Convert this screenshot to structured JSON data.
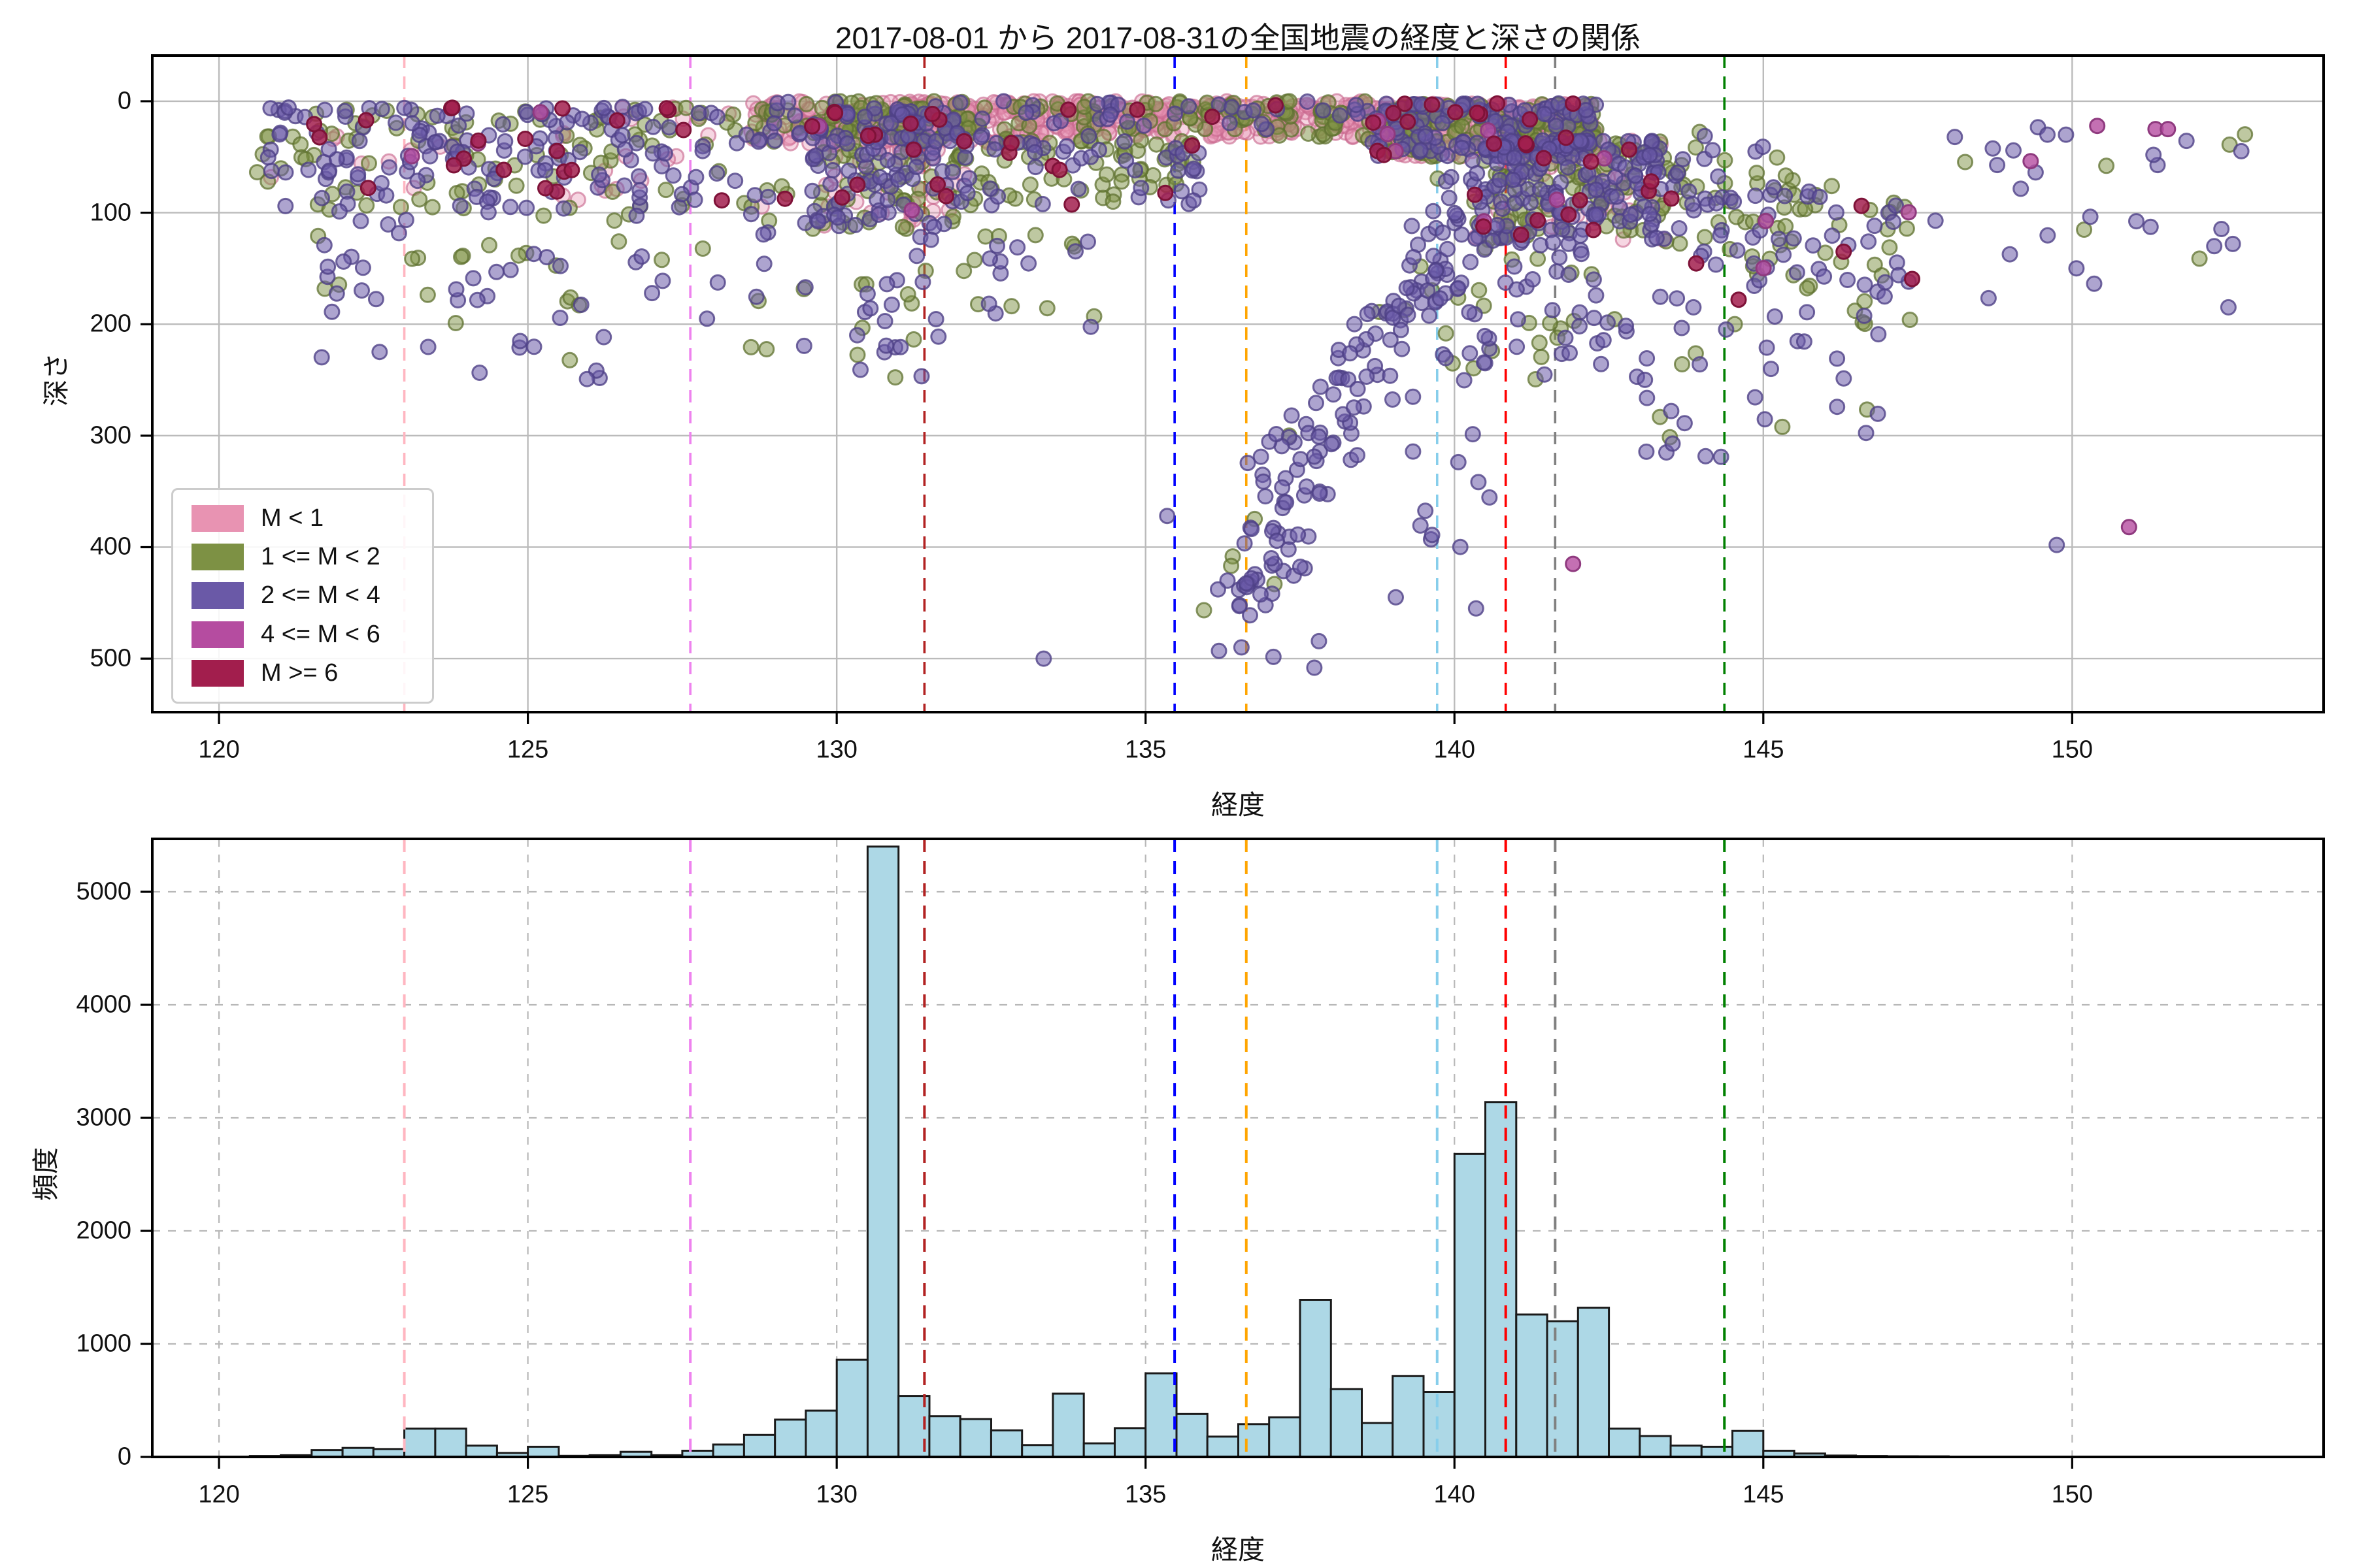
{
  "title": "2017-08-01 から 2017-08-31の全国地震の経度と深さの関係",
  "colors": {
    "background": "#ffffff",
    "grid_top": "#bbbbbb",
    "grid_bottom": "#b8b8b8",
    "spine": "#000000",
    "hist_fill": "#ADD8E6",
    "hist_edge": "#1a1a1a"
  },
  "legend": {
    "items": [
      {
        "key": "p",
        "label": "M < 1",
        "color": "#E893B2"
      },
      {
        "key": "o",
        "label": "1 <= M < 2",
        "color": "#7D9144"
      },
      {
        "key": "u",
        "label": "2 <= M < 4",
        "color": "#6A59A7"
      },
      {
        "key": "m",
        "label": "4 <= M < 6",
        "color": "#B54CA0"
      },
      {
        "key": "c",
        "label": "M >= 6",
        "color": "#A21E4D"
      }
    ]
  },
  "axes": {
    "top": {
      "xlabel": "経度",
      "ylabel": "深さ",
      "xticks": [
        120,
        125,
        130,
        135,
        140,
        145,
        150
      ],
      "yticks": [
        0,
        100,
        200,
        300,
        400,
        500
      ],
      "xlim": [
        118.92,
        154.07
      ],
      "ylim": [
        548,
        -41
      ]
    },
    "bottom": {
      "xlabel": "経度",
      "ylabel": "頻度",
      "xticks": [
        120,
        125,
        130,
        135,
        140,
        145,
        150
      ],
      "yticks": [
        0,
        1000,
        2000,
        3000,
        4000,
        5000
      ],
      "xlim": [
        118.92,
        154.07
      ],
      "ylim": [
        0,
        5468
      ]
    }
  },
  "vlines": [
    {
      "lon": 123.0,
      "color": "#FFB6C1"
    },
    {
      "lon": 127.63,
      "color": "#EE82EE"
    },
    {
      "lon": 131.42,
      "color": "#B22222"
    },
    {
      "lon": 135.47,
      "color": "#0000FF"
    },
    {
      "lon": 136.63,
      "color": "#FFA500"
    },
    {
      "lon": 139.72,
      "color": "#87CEEB"
    },
    {
      "lon": 140.83,
      "color": "#FF0000"
    },
    {
      "lon": 141.63,
      "color": "#808080"
    },
    {
      "lon": 144.37,
      "color": "#008000"
    }
  ],
  "chart_data": [
    {
      "type": "scatter",
      "title": "2017-08-01 から 2017-08-31の全国地震の経度と深さの関係",
      "xlabel": "経度",
      "ylabel": "深さ",
      "xlim": [
        118.92,
        154.07
      ],
      "ylim_depth_inverted": [
        548,
        -41
      ],
      "marker_radius": 11,
      "marker_alpha": 0.5,
      "classes": {
        "p": {
          "label": "M < 1",
          "fill": "#E893B2",
          "edge": "#C9688F",
          "alpha": 0.38
        },
        "o": {
          "label": "1 <= M < 2",
          "fill": "#7D9144",
          "edge": "#5F7230",
          "alpha": 0.5
        },
        "u": {
          "label": "2 <= M < 4",
          "fill": "#6A59A7",
          "edge": "#4F4187",
          "alpha": 0.55
        },
        "m": {
          "label": "4 <= M < 6",
          "fill": "#B54CA0",
          "edge": "#8F3A7F",
          "alpha": 0.8
        },
        "c": {
          "label": "M >= 6",
          "fill": "#A21E4D",
          "edge": "#7E1238",
          "alpha": 0.85
        }
      },
      "clusters": [
        {
          "name": "ryukyu-shallow",
          "lon": [
            120.6,
            125.6
          ],
          "depth": [
            5,
            95
          ],
          "n": {
            "u": 100,
            "o": 55,
            "c": 16,
            "p": 12,
            "m": 3
          }
        },
        {
          "name": "ryukyu-mid",
          "lon": [
            121.6,
            126.2
          ],
          "depth": [
            95,
            255
          ],
          "n": {
            "u": 40,
            "o": 22
          }
        },
        {
          "name": "okinawa-shallow",
          "lon": [
            125.6,
            129.2
          ],
          "depth": [
            5,
            100
          ],
          "n": {
            "u": 55,
            "o": 40,
            "c": 7,
            "p": 18
          }
        },
        {
          "name": "okinawa-mid",
          "lon": [
            126.2,
            129.6
          ],
          "depth": [
            100,
            225
          ],
          "n": {
            "u": 16,
            "o": 10
          }
        },
        {
          "name": "kyushu",
          "lon": [
            129.6,
            132.1
          ],
          "depth": [
            8,
            115
          ],
          "n": {
            "u": 110,
            "o": 95,
            "c": 11,
            "p": 60,
            "m": 2
          }
        },
        {
          "name": "kyushu-deep",
          "lon": [
            130.3,
            131.4
          ],
          "depth": [
            150,
            255
          ],
          "n": {
            "u": 15,
            "o": 8
          }
        },
        {
          "name": "pink-west",
          "lon": [
            128.6,
            133.5
          ],
          "depth": [
            0,
            38
          ],
          "n": {
            "p": 200,
            "o": 70,
            "u": 35,
            "c": 3
          }
        },
        {
          "name": "pink-mid",
          "lon": [
            133.5,
            138.6
          ],
          "depth": [
            0,
            32
          ],
          "n": {
            "p": 230,
            "o": 80,
            "u": 30,
            "c": 4
          }
        },
        {
          "name": "kanto-band",
          "lon": [
            138.6,
            142.3
          ],
          "depth": [
            2,
            50
          ],
          "n": {
            "p": 260,
            "o": 140,
            "u": 110,
            "c": 16,
            "m": 4
          }
        },
        {
          "name": "setouchi",
          "lon": [
            132.1,
            135.9
          ],
          "depth": [
            35,
            95
          ],
          "n": {
            "o": 60,
            "u": 40,
            "c": 7
          }
        },
        {
          "name": "izu-slab",
          "band": {
            "from": [
              140.3,
              70
            ],
            "to": [
              136.1,
              470
            ]
          },
          "jitter": [
            0.33,
            45
          ],
          "n": {
            "u": 110,
            "o": 10
          }
        },
        {
          "name": "izu-deep",
          "lon": [
            136.6,
            138.1
          ],
          "depth": [
            290,
            520
          ],
          "n": {
            "u": 30
          }
        },
        {
          "name": "tohoku",
          "lon": [
            140.3,
            143.4
          ],
          "depth": [
            35,
            125
          ],
          "n": {
            "u": 150,
            "o": 120,
            "c": 13,
            "p": 45,
            "m": 3
          }
        },
        {
          "name": "tohoku-mid",
          "lon": [
            139.6,
            142.6
          ],
          "depth": [
            125,
            250
          ],
          "n": {
            "u": 45,
            "o": 22
          }
        },
        {
          "name": "hokkaido-band",
          "band": {
            "from": [
              143.0,
              60
            ],
            "to": [
              147.4,
              160
            ]
          },
          "jitter": [
            0.5,
            55
          ],
          "n": {
            "o": 70,
            "u": 70,
            "c": 4,
            "m": 3
          }
        },
        {
          "name": "east-deep",
          "lon": [
            142.6,
            147.0
          ],
          "depth": [
            160,
            330
          ],
          "n": {
            "u": 35,
            "o": 8
          }
        },
        {
          "name": "far-east",
          "lon": [
            147.6,
            152.8
          ],
          "depth": [
            15,
            185
          ],
          "n": {
            "u": 20,
            "o": 6,
            "m": 2
          }
        },
        {
          "name": "izu-south",
          "lon": [
            138.9,
            140.6
          ],
          "depth": [
            150,
            400
          ],
          "n": {
            "u": 32
          }
        },
        {
          "name": "west-mid",
          "lon": [
            131.2,
            134.2
          ],
          "depth": [
            120,
            215
          ],
          "n": {
            "u": 16,
            "o": 12
          }
        }
      ],
      "singles": [
        {
          "lon": 133.35,
          "depth": 500,
          "cls": "u"
        },
        {
          "lon": 135.35,
          "depth": 372,
          "cls": "u"
        },
        {
          "lon": 149.75,
          "depth": 398,
          "cls": "u"
        },
        {
          "lon": 150.92,
          "depth": 382,
          "cls": "m"
        },
        {
          "lon": 141.92,
          "depth": 415,
          "cls": "m"
        },
        {
          "lon": 151.35,
          "depth": 25,
          "cls": "m"
        },
        {
          "lon": 151.55,
          "depth": 25,
          "cls": "m"
        },
        {
          "lon": 152.3,
          "depth": 130,
          "cls": "u"
        },
        {
          "lon": 152.6,
          "depth": 128,
          "cls": "u"
        },
        {
          "lon": 148.1,
          "depth": 32,
          "cls": "u"
        },
        {
          "lon": 149.6,
          "depth": 30,
          "cls": "u"
        },
        {
          "lon": 149.9,
          "depth": 30,
          "cls": "u"
        },
        {
          "lon": 146.3,
          "depth": 135,
          "cls": "c"
        },
        {
          "lon": 144.6,
          "depth": 178,
          "cls": "c"
        },
        {
          "lon": 140.35,
          "depth": 455,
          "cls": "u"
        },
        {
          "lon": 139.05,
          "depth": 445,
          "cls": "u"
        }
      ]
    },
    {
      "type": "bar",
      "subtype": "histogram",
      "xlabel": "経度",
      "ylabel": "頻度",
      "bin_start": 120.0,
      "bin_width": 0.5,
      "values": [
        0,
        8,
        15,
        60,
        80,
        70,
        250,
        250,
        100,
        35,
        90,
        10,
        15,
        45,
        15,
        55,
        110,
        195,
        330,
        410,
        860,
        5400,
        540,
        360,
        335,
        235,
        105,
        560,
        120,
        255,
        740,
        380,
        180,
        290,
        350,
        1390,
        600,
        300,
        715,
        575,
        2680,
        3140,
        1260,
        1200,
        1320,
        250,
        185,
        100,
        90,
        230,
        55,
        30,
        12,
        8,
        6,
        5,
        3
      ],
      "ylim": [
        0,
        5468
      ],
      "grid": "dashed"
    }
  ]
}
